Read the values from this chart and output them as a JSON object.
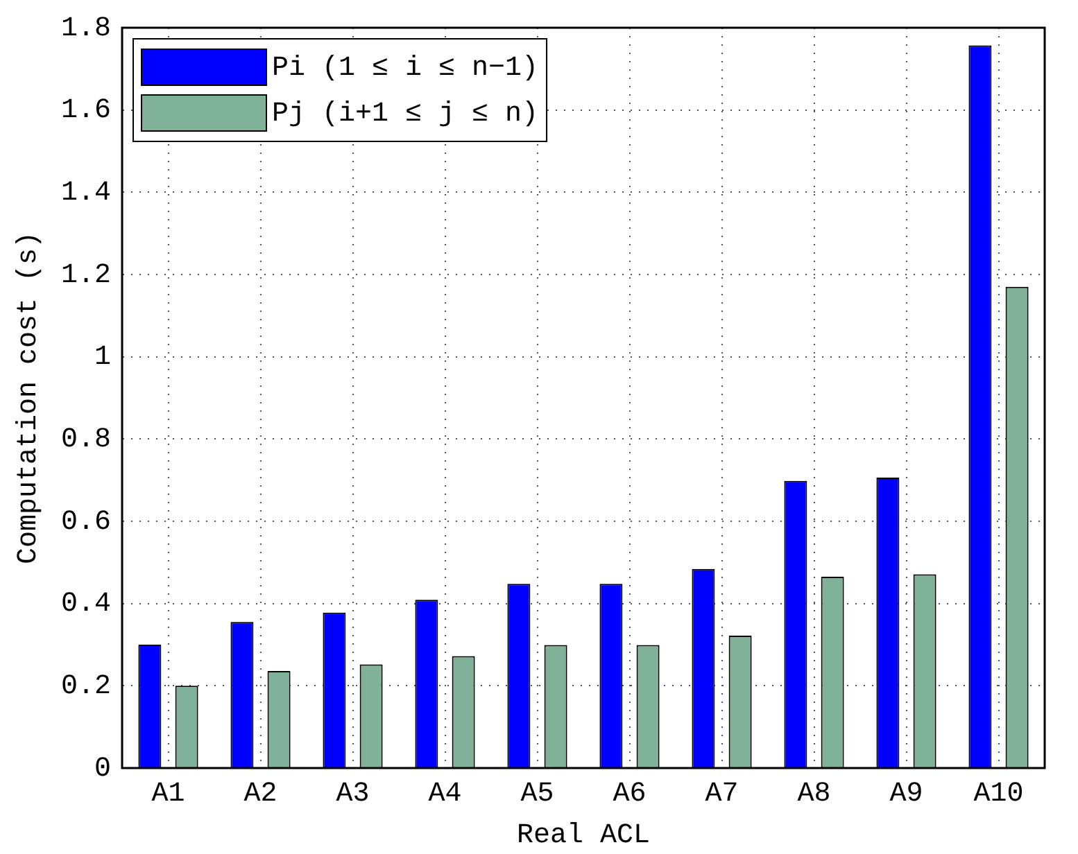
{
  "chart_data": {
    "type": "bar",
    "xlabel": "Real ACL",
    "ylabel": "Computation cost (s)",
    "categories": [
      "A1",
      "A2",
      "A3",
      "A4",
      "A5",
      "A6",
      "A7",
      "A8",
      "A9",
      "A10"
    ],
    "series": [
      {
        "name": "Pi (1 ≤ i ≤ n−1)",
        "color": "#0000ff",
        "values": [
          0.3,
          0.355,
          0.378,
          0.409,
          0.448,
          0.448,
          0.484,
          0.698,
          0.706,
          1.757
        ]
      },
      {
        "name": "Pj (i+1 ≤ j ≤ n)",
        "color": "#7fb299",
        "values": [
          0.2,
          0.236,
          0.252,
          0.272,
          0.299,
          0.299,
          0.322,
          0.465,
          0.471,
          1.17
        ]
      }
    ],
    "ylim": [
      0,
      1.8
    ],
    "yticks": [
      0,
      0.2,
      0.4,
      0.6,
      0.8,
      1,
      1.2,
      1.4,
      1.6,
      1.8
    ],
    "grid": true,
    "legend": "top left"
  }
}
